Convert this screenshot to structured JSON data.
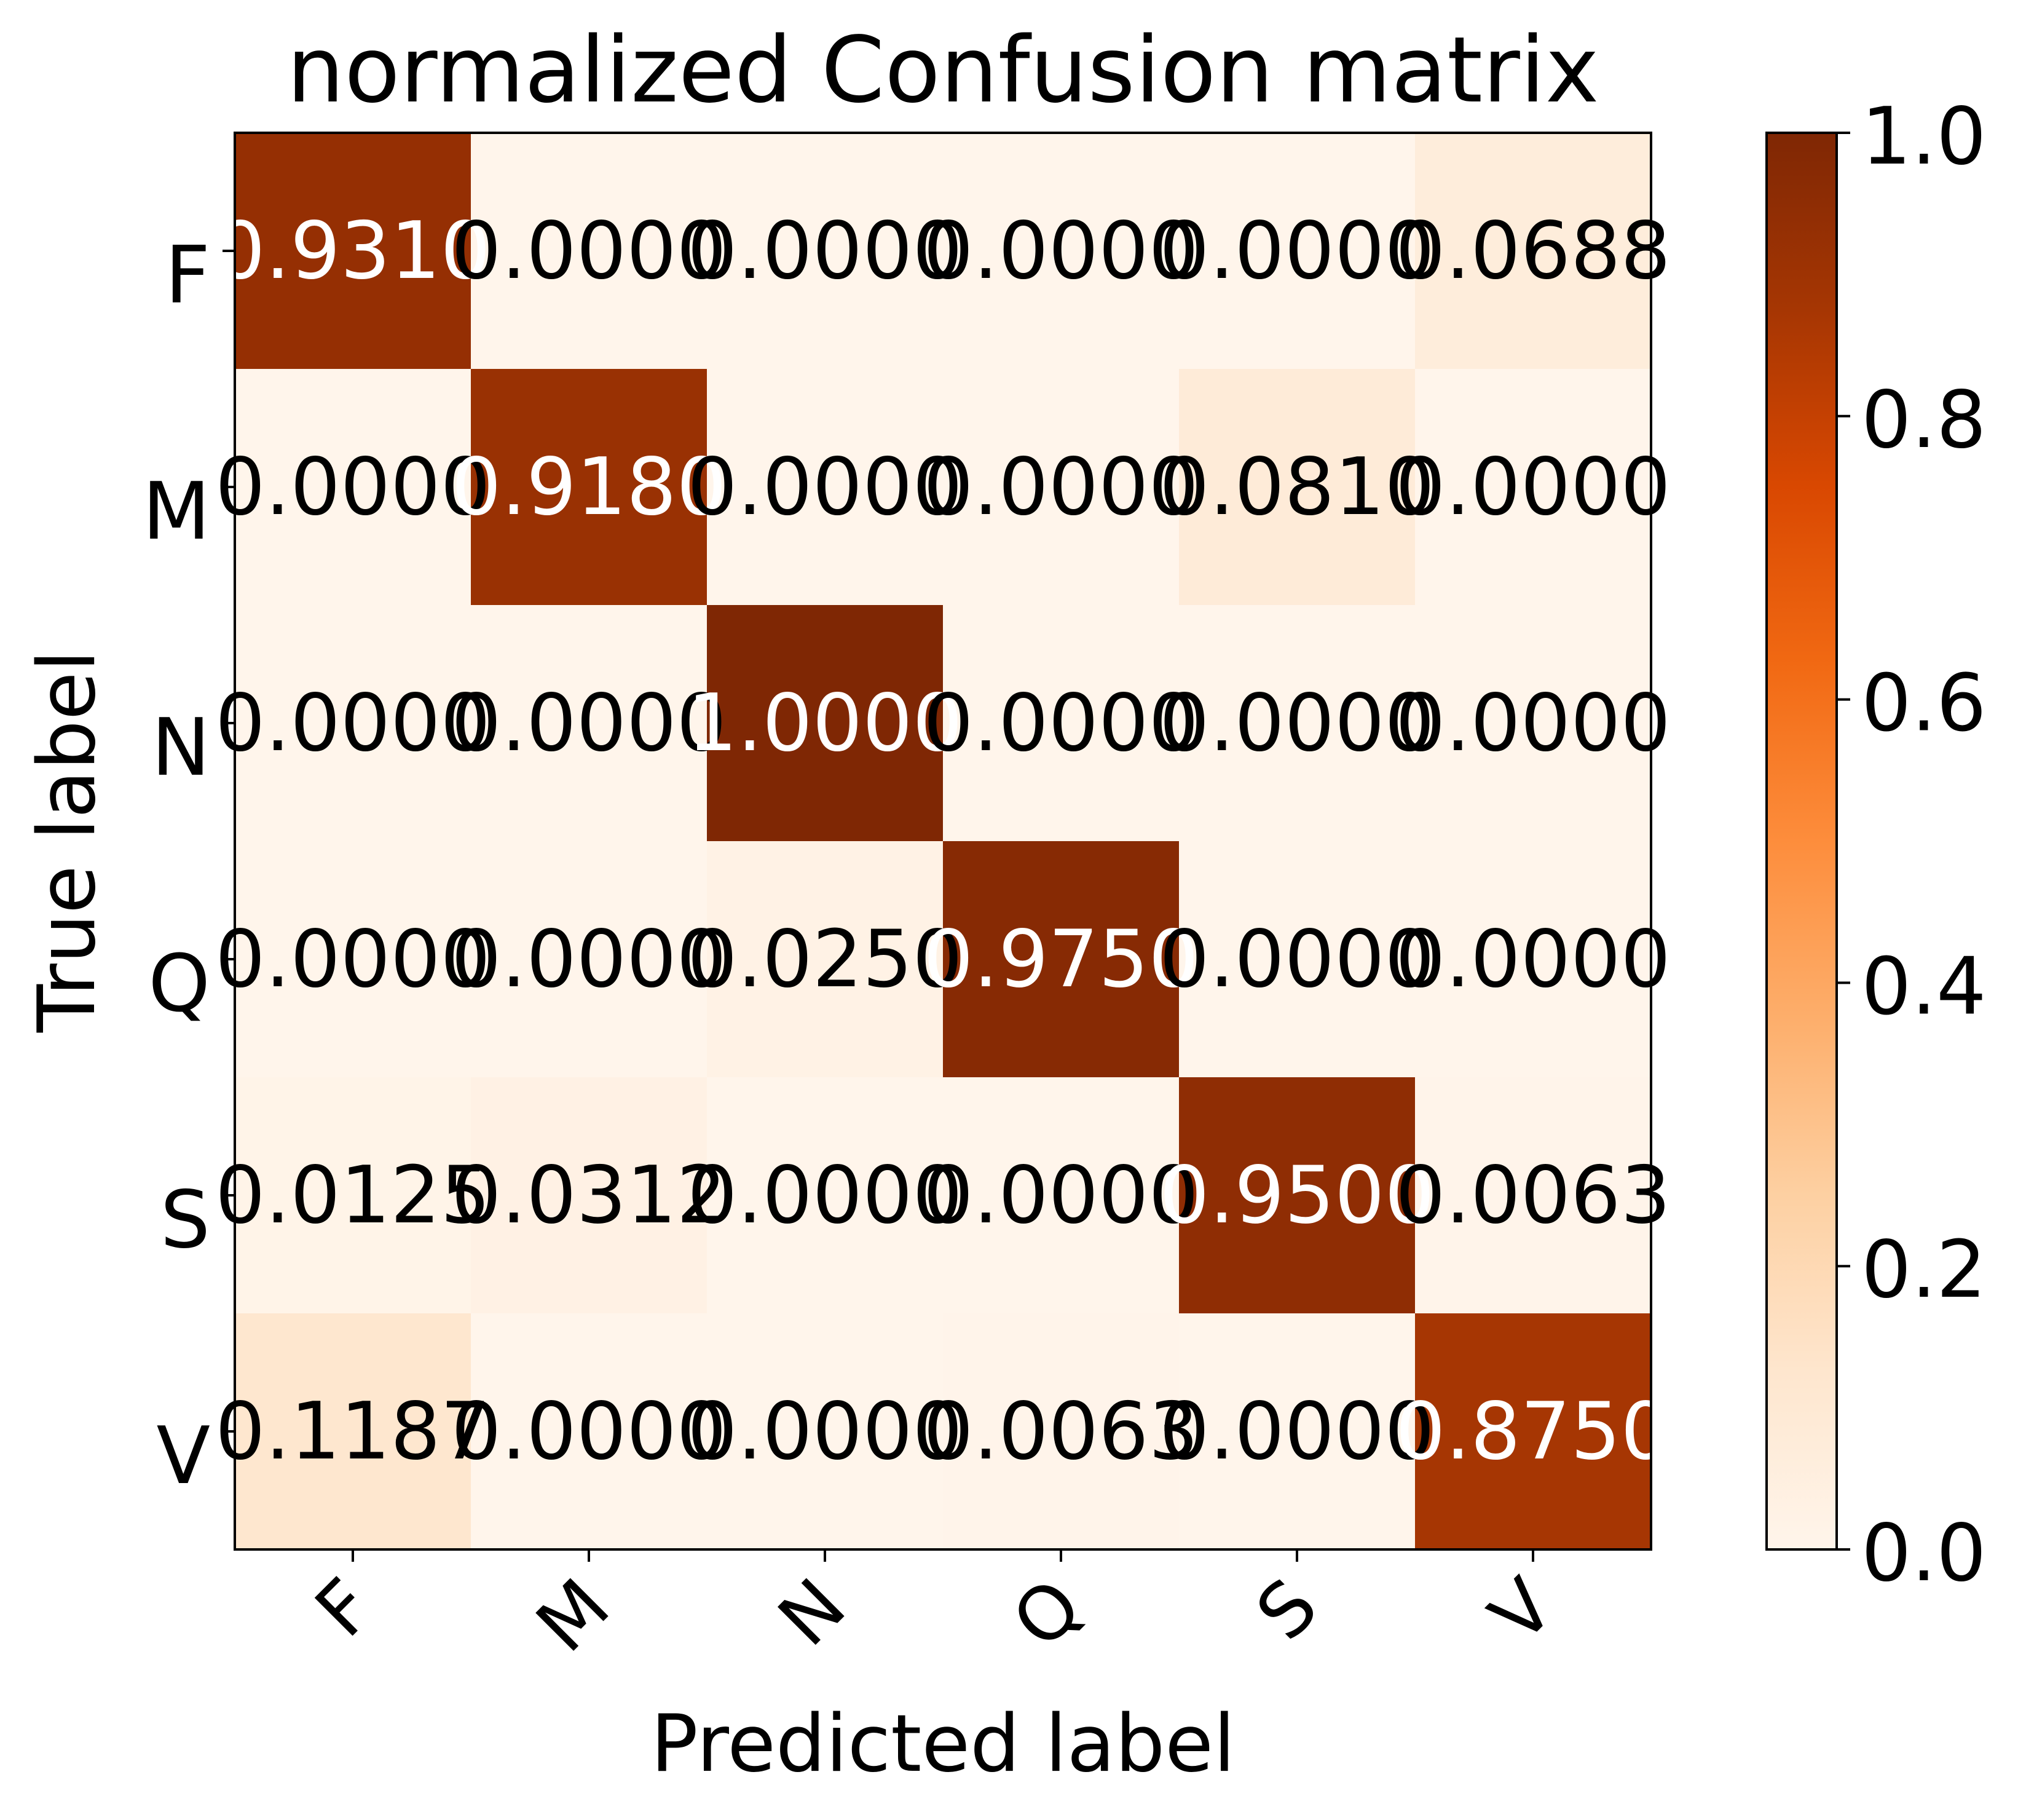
{
  "chart_data": {
    "type": "heatmap",
    "title": "normalized Confusion matrix",
    "xlabel": "Predicted label",
    "ylabel": "True label",
    "x_categories": [
      "F",
      "M",
      "N",
      "Q",
      "S",
      "V"
    ],
    "y_categories": [
      "F",
      "M",
      "N",
      "Q",
      "S",
      "V"
    ],
    "values": [
      [
        0.931,
        0.0,
        0.0,
        0.0,
        0.0,
        0.0688
      ],
      [
        0.0,
        0.918,
        0.0,
        0.0,
        0.081,
        0.0
      ],
      [
        0.0,
        0.0,
        1.0,
        0.0,
        0.0,
        0.0
      ],
      [
        0.0,
        0.0,
        0.025,
        0.975,
        0.0,
        0.0
      ],
      [
        0.0125,
        0.0312,
        0.0,
        0.0,
        0.95,
        0.0063
      ],
      [
        0.1187,
        0.0,
        0.0,
        0.0063,
        0.0,
        0.875
      ]
    ],
    "value_format_decimals": 4,
    "colormap": "Oranges",
    "colorbar": {
      "range": [
        0,
        1
      ],
      "ticks": [
        "0.0",
        "0.2",
        "0.4",
        "0.6",
        "0.8",
        "1.0"
      ]
    },
    "x_tick_rotation_deg": 45,
    "grid": false
  },
  "colors": {
    "text_light": "#ffffff",
    "text_dark": "#000000",
    "axis": "#000000"
  }
}
